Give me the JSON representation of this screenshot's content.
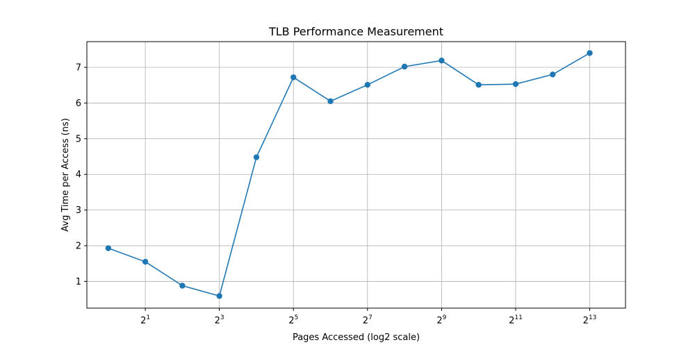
{
  "chart_data": {
    "type": "line",
    "title": "TLB Performance Measurement",
    "xlabel": "Pages Accessed (log2 scale)",
    "ylabel": "Avg Time per Access (ns)",
    "x_scale": "log2",
    "xlim": [
      0.67,
      16000
    ],
    "ylim": [
      0.25,
      7.72
    ],
    "x_ticks": [
      {
        "value": 2,
        "base": "2",
        "exp": "1"
      },
      {
        "value": 8,
        "base": "2",
        "exp": "3"
      },
      {
        "value": 32,
        "base": "2",
        "exp": "5"
      },
      {
        "value": 128,
        "base": "2",
        "exp": "7"
      },
      {
        "value": 512,
        "base": "2",
        "exp": "9"
      },
      {
        "value": 2048,
        "base": "2",
        "exp": "11"
      },
      {
        "value": 8192,
        "base": "2",
        "exp": "13"
      }
    ],
    "y_ticks": [
      1,
      2,
      3,
      4,
      5,
      6,
      7
    ],
    "grid": true,
    "series": [
      {
        "color": "#1f77b4",
        "marker": "circle",
        "x": [
          1,
          2,
          4,
          8,
          16,
          32,
          64,
          128,
          256,
          512,
          1024,
          2048,
          4096,
          8192
        ],
        "y": [
          1.93,
          1.55,
          0.88,
          0.59,
          4.48,
          6.72,
          6.05,
          6.51,
          7.02,
          7.19,
          6.51,
          6.53,
          6.8,
          7.4
        ]
      }
    ]
  }
}
